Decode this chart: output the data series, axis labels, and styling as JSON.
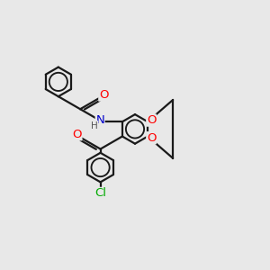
{
  "bg_color": "#e8e8e8",
  "bond_color": "#1a1a1a",
  "bond_width": 1.6,
  "atom_colors": {
    "N": "#0000cc",
    "O": "#ff0000",
    "Cl": "#00aa00",
    "H": "#555555",
    "C": "#1a1a1a"
  },
  "font_size": 8.5,
  "fig_size": [
    3.0,
    3.0
  ],
  "dpi": 100,
  "xlim": [
    -2.5,
    4.5
  ],
  "ylim": [
    -4.5,
    4.5
  ]
}
